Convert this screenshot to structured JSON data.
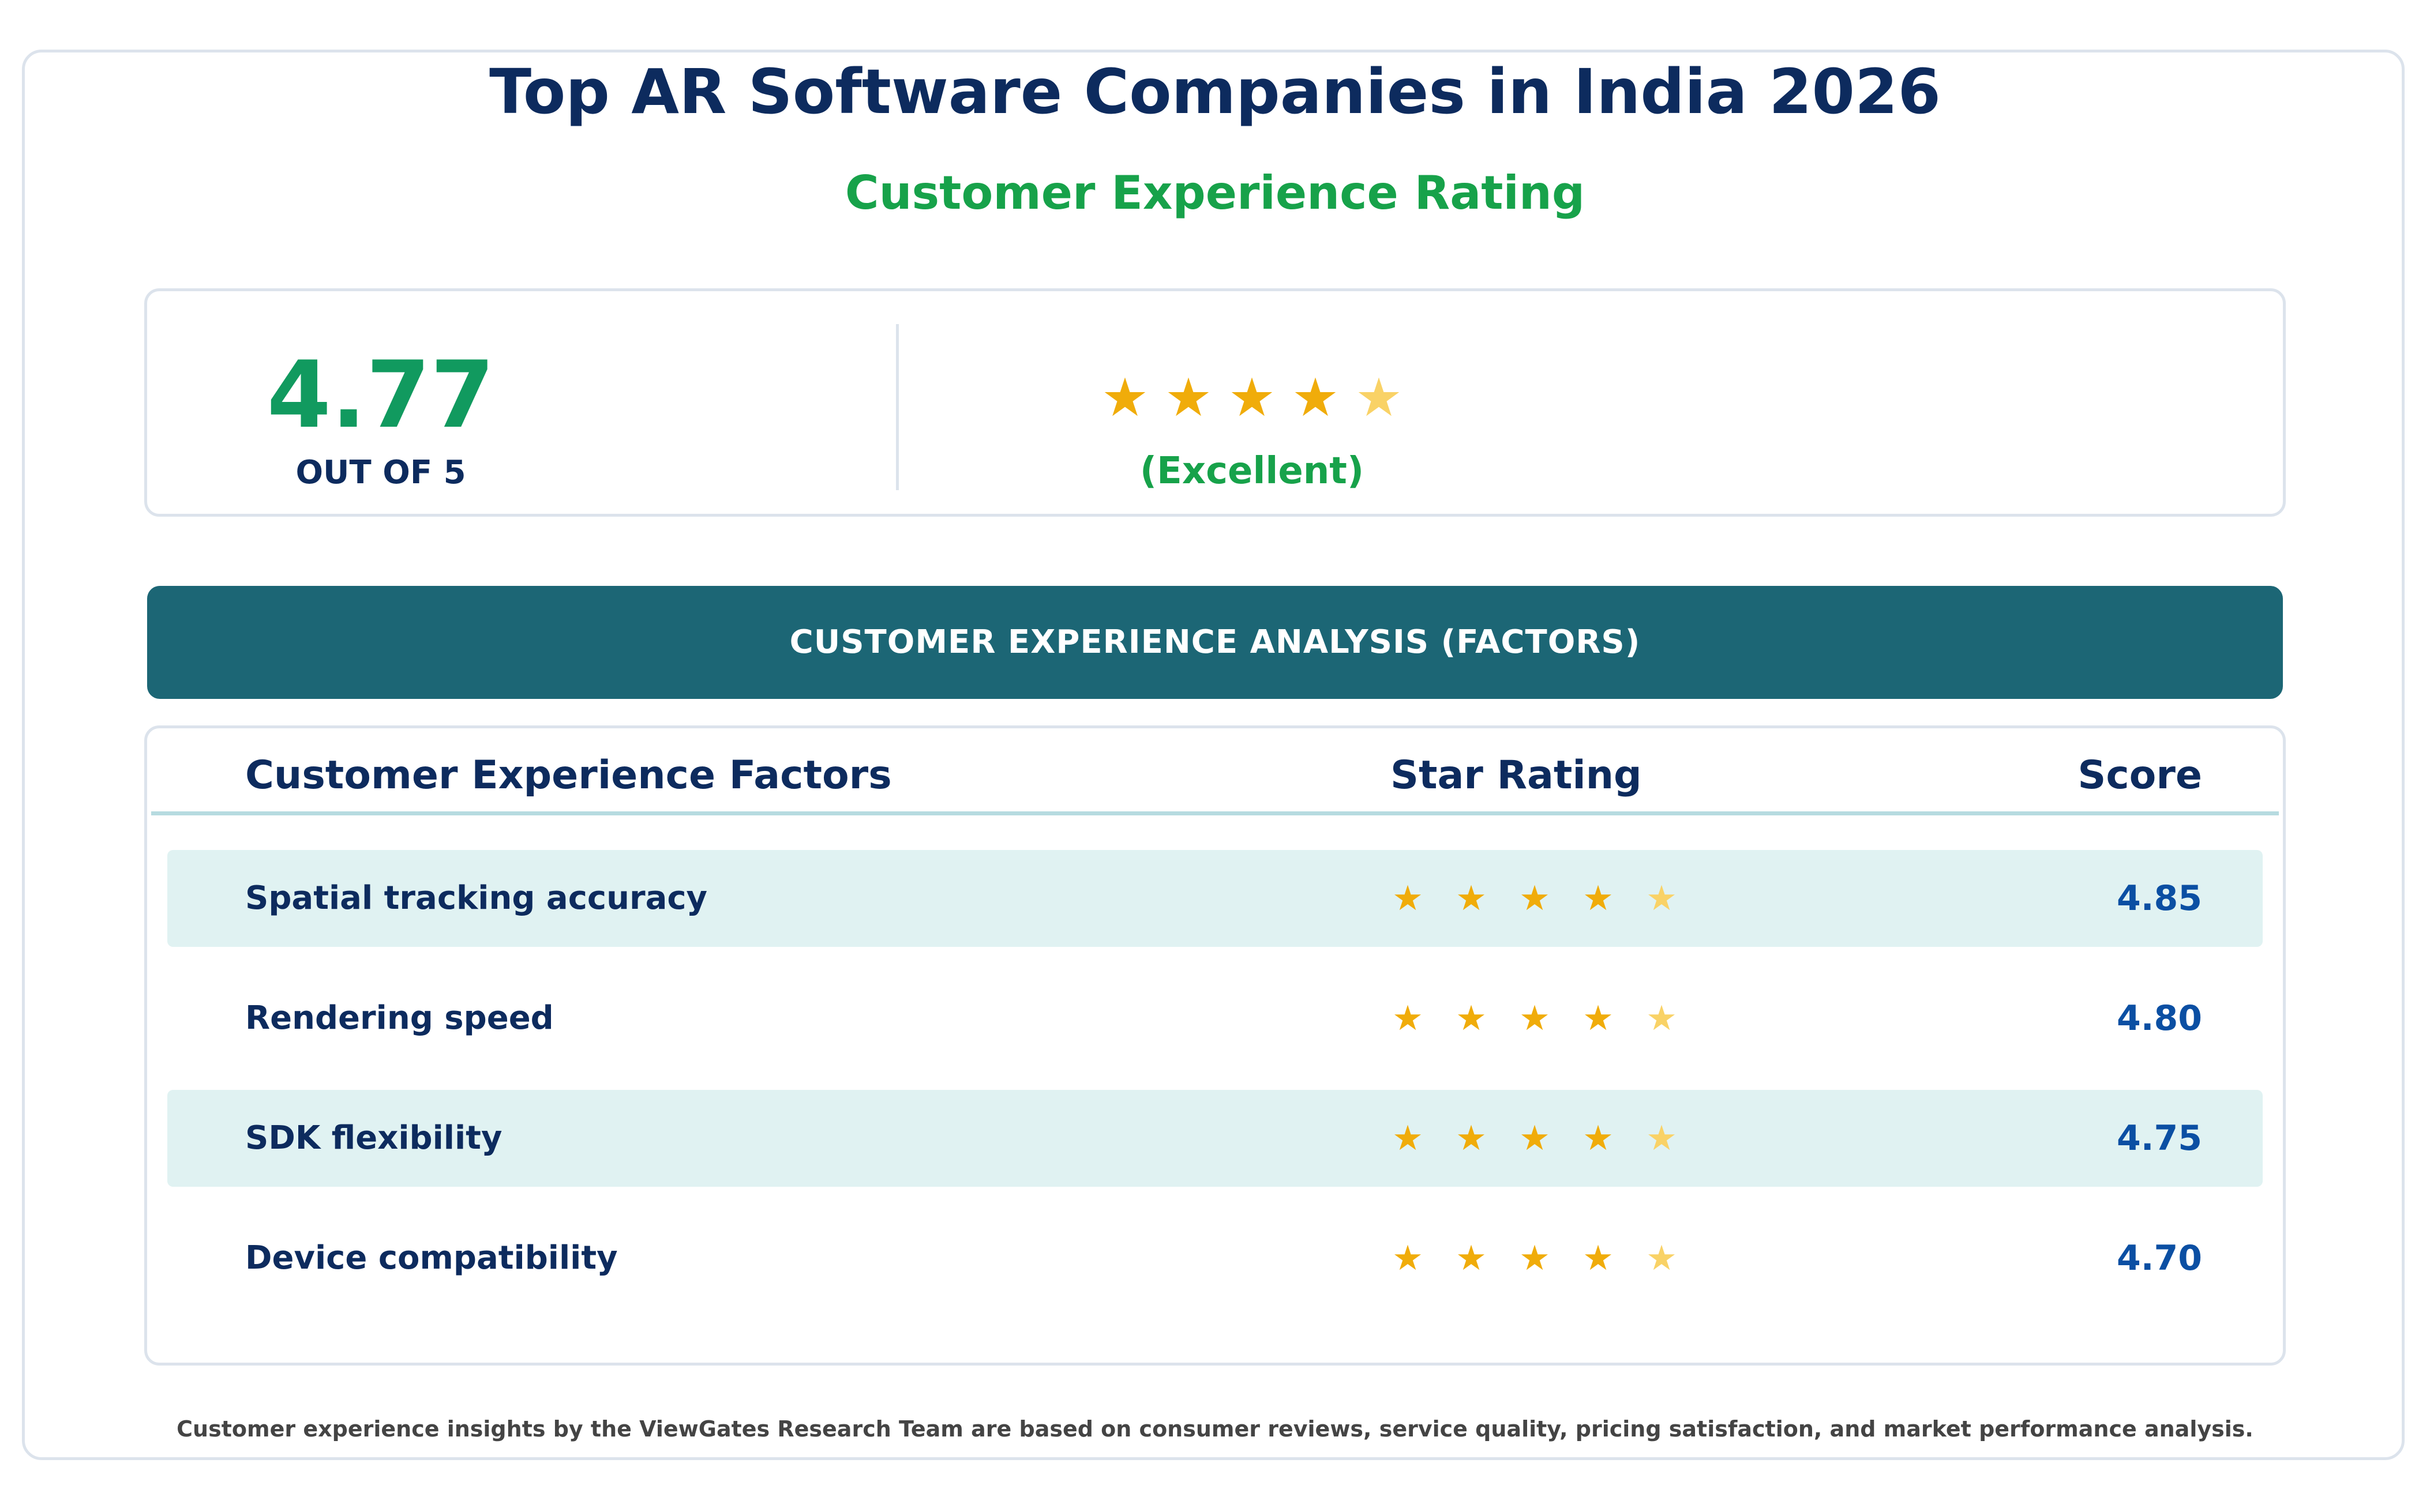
{
  "header": {
    "title": "Top AR Software Companies in India 2026",
    "subtitle": "Customer Experience Rating"
  },
  "summary": {
    "score": "4.77",
    "out_of": "OUT OF 5",
    "stars_value": 4.77,
    "star_glyphs": [
      "★",
      "★",
      "★",
      "★",
      "★"
    ],
    "rating_label": "(Excellent)"
  },
  "section": {
    "title": "CUSTOMER EXPERIENCE ANALYSIS (FACTORS)"
  },
  "table": {
    "columns": {
      "factor": "Customer Experience Factors",
      "stars": "Star Rating",
      "score": "Score"
    },
    "rows": [
      {
        "factor": "Spatial tracking accuracy",
        "score": "4.85",
        "stars": [
          "★",
          "★",
          "★",
          "★",
          "★"
        ]
      },
      {
        "factor": "Rendering speed",
        "score": "4.80",
        "stars": [
          "★",
          "★",
          "★",
          "★",
          "★"
        ]
      },
      {
        "factor": "SDK flexibility",
        "score": "4.75",
        "stars": [
          "★",
          "★",
          "★",
          "★",
          "★"
        ]
      },
      {
        "factor": "Device compatibility",
        "score": "4.70",
        "stars": [
          "★",
          "★",
          "★",
          "★",
          "★"
        ]
      }
    ]
  },
  "footer": {
    "note": "Customer experience insights by the ViewGates Research Team are based on consumer reviews, service quality, pricing satisfaction, and market performance analysis."
  },
  "colors": {
    "navy": "#0d2b5e",
    "green": "#17a24a",
    "teal_header": "#1c6675",
    "row_shade": "#e0f2f2",
    "star_full": "#f0ac0a",
    "star_partial": "#f9d266",
    "score_blue": "#0b4fa3"
  }
}
